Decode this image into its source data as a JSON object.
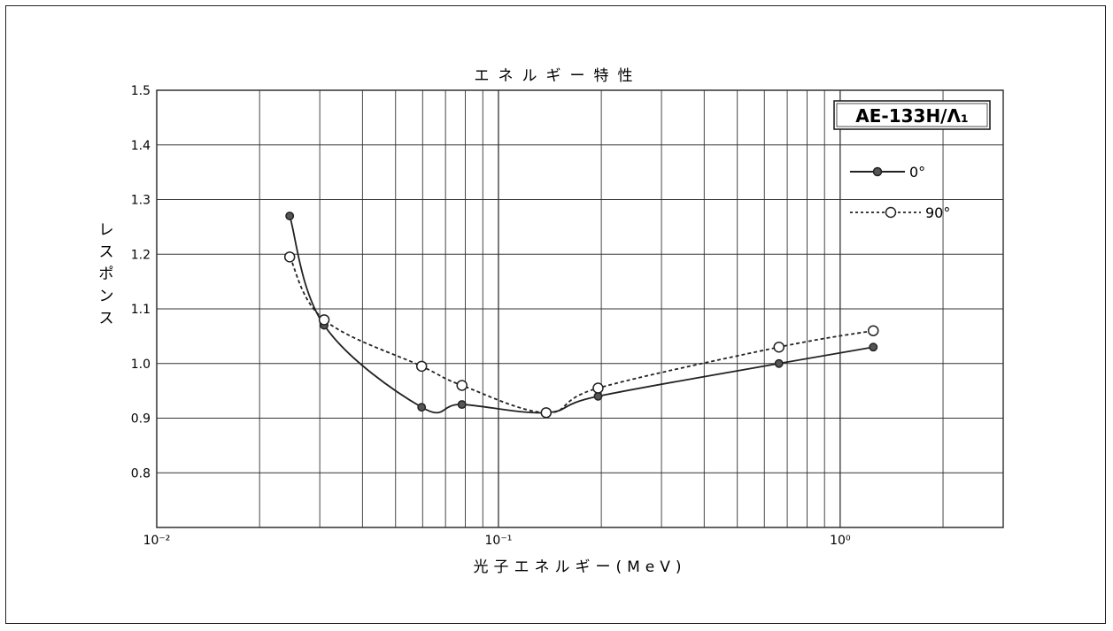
{
  "chart_data": {
    "type": "line",
    "title": "エネルギー特性",
    "xlabel": "光子エネルギー(MeV)",
    "ylabel": "レスポンス",
    "xscale": "log",
    "xlim": [
      0.01,
      3.0
    ],
    "ylim": [
      0.7,
      1.5
    ],
    "yticks": [
      "1.5",
      "1.4",
      "1.3",
      "1.2",
      "1.1",
      "1.0",
      "0.9",
      "0.8"
    ],
    "xticks": [
      {
        "label": "10⁻²",
        "value": 0.01
      },
      {
        "label": "10⁻¹",
        "value": 0.1
      },
      {
        "label": "10⁰",
        "value": 1.0
      }
    ],
    "grid": true,
    "legend_position": "top-right",
    "badge": "AE-133H/Λ₁",
    "series": [
      {
        "name": "0°",
        "style": "solid",
        "marker": "filled-circle",
        "color": "#222222",
        "x": [
          0.0245,
          0.0309,
          0.0596,
          0.0782,
          0.1379,
          0.1957,
          0.662,
          1.25
        ],
        "y": [
          1.27,
          1.07,
          0.92,
          0.925,
          0.91,
          0.94,
          1.0,
          1.03
        ]
      },
      {
        "name": "90°",
        "style": "dashed",
        "marker": "open-circle",
        "color": "#222222",
        "x": [
          0.0245,
          0.0309,
          0.0596,
          0.0782,
          0.1379,
          0.1957,
          0.662,
          1.25
        ],
        "y": [
          1.195,
          1.08,
          0.995,
          0.96,
          0.91,
          0.955,
          1.03,
          1.06
        ]
      }
    ]
  }
}
